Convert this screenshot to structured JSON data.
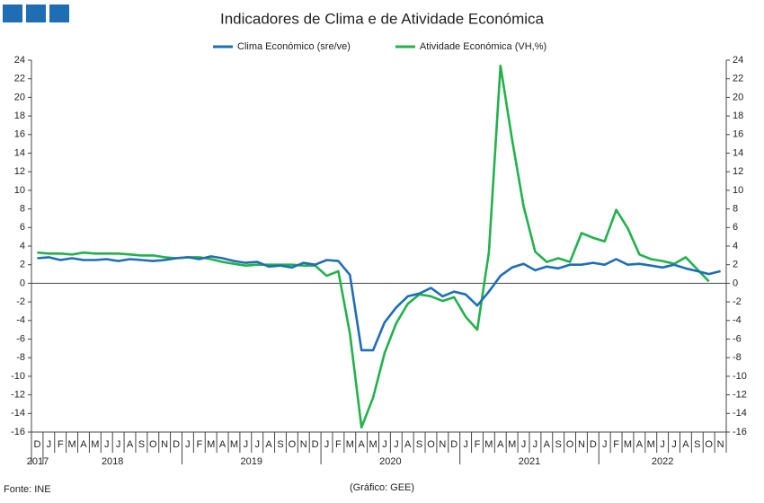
{
  "chart_data": {
    "type": "line",
    "title": "Indicadores de Clima e de Atividade Económica",
    "categories": [
      "D",
      "J",
      "F",
      "M",
      "A",
      "M",
      "J",
      "J",
      "A",
      "S",
      "O",
      "N",
      "D",
      "J",
      "F",
      "M",
      "A",
      "M",
      "J",
      "J",
      "A",
      "S",
      "O",
      "N",
      "D",
      "J",
      "F",
      "M",
      "A",
      "M",
      "J",
      "J",
      "A",
      "S",
      "O",
      "N",
      "D",
      "J",
      "F",
      "M",
      "A",
      "M",
      "J",
      "J",
      "A",
      "S",
      "O",
      "N",
      "D",
      "J",
      "F",
      "M",
      "A",
      "M",
      "J",
      "J",
      "A",
      "S",
      "O",
      "N"
    ],
    "years": [
      "2017",
      "2018",
      "2019",
      "2020",
      "2021",
      "2022"
    ],
    "series": [
      {
        "name": "Clima Económico (sre/ve)",
        "color": "#1f6eb4",
        "axis": "y",
        "values": [
          2.7,
          2.8,
          2.5,
          2.7,
          2.5,
          2.5,
          2.6,
          2.4,
          2.6,
          2.5,
          2.4,
          2.5,
          2.7,
          2.8,
          2.6,
          2.9,
          2.7,
          2.4,
          2.2,
          2.3,
          1.8,
          1.9,
          1.7,
          2.2,
          2.0,
          2.5,
          2.4,
          0.9,
          -7.2,
          -7.2,
          -4.2,
          -2.6,
          -1.4,
          -1.1,
          -0.5,
          -1.4,
          -0.9,
          -1.2,
          -2.4,
          -0.9,
          0.8,
          1.7,
          2.1,
          1.4,
          1.8,
          1.6,
          2.0,
          2.0,
          2.2,
          2.0,
          2.6,
          2.0,
          2.1,
          1.9,
          1.7,
          2.0,
          1.6,
          1.3,
          1.0,
          1.3
        ]
      },
      {
        "name": "Atividade Económica (VH,%)",
        "color": "#22b14c",
        "axis": "y2",
        "values": [
          3.3,
          3.2,
          3.2,
          3.1,
          3.3,
          3.2,
          3.2,
          3.2,
          3.1,
          3.0,
          3.0,
          2.8,
          2.7,
          2.8,
          2.8,
          2.6,
          2.3,
          2.1,
          1.9,
          2.0,
          2.0,
          2.0,
          2.0,
          1.9,
          1.9,
          0.8,
          1.3,
          -5.4,
          -15.5,
          -12.3,
          -7.5,
          -4.3,
          -2.2,
          -1.2,
          -1.4,
          -1.9,
          -1.5,
          -3.6,
          -5.0,
          3.3,
          23.4,
          15.5,
          8.3,
          3.4,
          2.3,
          2.7,
          2.3,
          5.4,
          4.9,
          4.5,
          7.9,
          5.9,
          3.1,
          2.6,
          2.4,
          2.1,
          2.8,
          1.5,
          0.2,
          null
        ]
      }
    ],
    "ylim": [
      -16,
      24
    ],
    "yticks": [
      -16,
      -14,
      -12,
      -10,
      -8,
      -6,
      -4,
      -2,
      0,
      2,
      4,
      6,
      8,
      10,
      12,
      14,
      16,
      18,
      20,
      22,
      24
    ],
    "y2lim": [
      -16,
      24
    ],
    "y2ticks": [
      -16,
      -14,
      -12,
      -10,
      -8,
      -6,
      -4,
      -2,
      0,
      2,
      4,
      6,
      8,
      10,
      12,
      14,
      16,
      18,
      20,
      22,
      24
    ],
    "source": "Fonte: INE",
    "credit": "(Gráfico: GEE)"
  }
}
